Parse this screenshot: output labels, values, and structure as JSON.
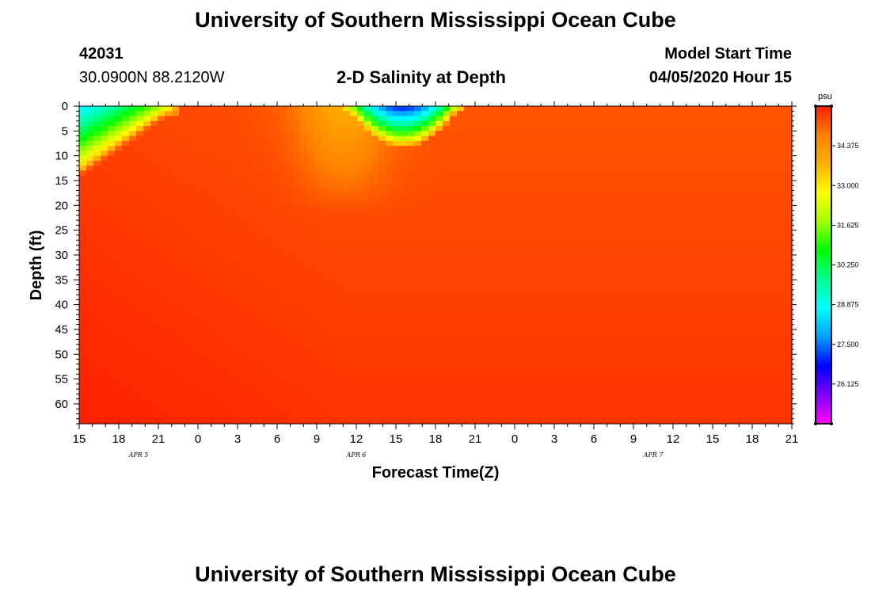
{
  "page": {
    "title_top": "University of Southern Mississippi Ocean Cube",
    "title_bottom": "University of Southern Mississippi Ocean Cube",
    "station_id": "42031",
    "station_location": "30.0900N 88.2120W",
    "plot_title": "2-D Salinity at Depth",
    "model_start_label": "Model Start Time",
    "model_start_value": "04/05/2020 Hour 15"
  },
  "colors": {
    "ramp": [
      "#ff00ff",
      "#7f00ff",
      "#0000ff",
      "#00a0ff",
      "#00ffff",
      "#00ff90",
      "#00ff00",
      "#a0ff00",
      "#ffff00",
      "#ffb000",
      "#ff8000",
      "#ff2000"
    ]
  },
  "chart_data": {
    "type": "heatmap",
    "title": "2-D Salinity at Depth",
    "xlabel": "Forecast Time(Z)",
    "ylabel": "Depth (ft)",
    "x_ticks": [
      "15",
      "18",
      "21",
      "0",
      "3",
      "6",
      "9",
      "12",
      "15",
      "18",
      "21",
      "0",
      "3",
      "6",
      "9",
      "12",
      "15",
      "18",
      "21"
    ],
    "x_hours_range": [
      0,
      54
    ],
    "date_labels": [
      {
        "label": "APR 5",
        "hour": 4.5
      },
      {
        "label": "APR 6",
        "hour": 21
      },
      {
        "label": "APR 7",
        "hour": 43.5
      }
    ],
    "y_ticks": [
      "0",
      "5",
      "10",
      "15",
      "20",
      "25",
      "30",
      "35",
      "40",
      "45",
      "50",
      "55",
      "60"
    ],
    "ylim": [
      0,
      64
    ],
    "colorbar": {
      "unit": "psu",
      "range": [
        24.75,
        35.75
      ],
      "tick_labels": [
        "34.375",
        "33.000",
        "31.625",
        "30.250",
        "28.875",
        "27.500",
        "26.125"
      ],
      "tick_values": [
        34.375,
        33.0,
        31.625,
        30.25,
        28.875,
        27.5,
        26.125
      ]
    },
    "salinity_features": [
      {
        "name": "fresh surface plume Apr 5",
        "hour_start": 0,
        "hour_end": 6.5,
        "depth_bottom": 12,
        "min_salinity": 28.5
      },
      {
        "name": "fresh surface lens Apr 6",
        "hour_start": 20.5,
        "hour_end": 28.5,
        "depth_bottom": 7,
        "min_salinity": 26.8
      },
      {
        "name": "moderate salinity tongue",
        "hour_start": 14,
        "hour_end": 26,
        "depth_bottom": 22,
        "min_salinity": 33.8
      },
      {
        "name": "high salinity deep water",
        "hour_start": 0,
        "hour_end": 54,
        "depth_bottom": 64,
        "min_salinity": 35.2
      }
    ]
  }
}
